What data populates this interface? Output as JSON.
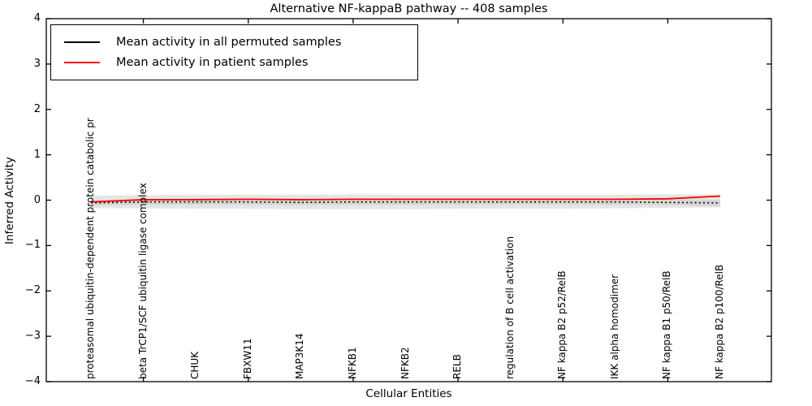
{
  "chart_data": {
    "type": "line",
    "title": "Alternative NF-kappaB pathway -- 408 samples",
    "xlabel": "Cellular Entities",
    "ylabel": "Inferred Activity",
    "ylim": [
      -4,
      4
    ],
    "yticks": [
      4,
      3,
      2,
      1,
      0,
      -1,
      -2,
      -3,
      -4
    ],
    "grid": false,
    "legend_position": "upper left",
    "categories": [
      "proteasomal ubiquitin-dependent protein catabolic pr",
      "beta TrCP1/SCF ubiquitin ligase complex",
      "CHUK",
      "FBXW11",
      "MAP3K14",
      "NFKB1",
      "NFKB2",
      "RELB",
      "regulation of B cell activation",
      "NF kappa B2 p52/RelB",
      "IKK alpha homodimer",
      "NF kappa B1 p50/RelB",
      "NF kappa B2 p100/RelB"
    ],
    "xtick_marks_at_category_index": [
      1,
      3,
      5,
      7,
      9,
      11
    ],
    "series": [
      {
        "name": "Mean activity in all permuted samples",
        "color": "#000000",
        "style": "dotted",
        "values": [
          -0.06,
          -0.04,
          -0.04,
          -0.04,
          -0.05,
          -0.04,
          -0.04,
          -0.04,
          -0.04,
          -0.04,
          -0.04,
          -0.05,
          -0.06
        ]
      },
      {
        "name": "Mean activity in patient samples",
        "color": "#ff0000",
        "style": "solid",
        "values": [
          -0.04,
          0.01,
          0.01,
          0.02,
          0.01,
          0.02,
          0.02,
          0.02,
          0.02,
          0.02,
          0.02,
          0.03,
          0.09
        ]
      }
    ],
    "bands": [
      {
        "name": "permuted-activity-outer-band",
        "color": "#e6e6e6",
        "upper": [
          0.1,
          0.11,
          0.12,
          0.12,
          0.12,
          0.13,
          0.12,
          0.12,
          0.12,
          0.12,
          0.12,
          0.13,
          0.13
        ],
        "lower": [
          -0.18,
          -0.18,
          -0.19,
          -0.19,
          -0.2,
          -0.2,
          -0.2,
          -0.19,
          -0.19,
          -0.19,
          -0.18,
          -0.17,
          -0.16
        ]
      },
      {
        "name": "permuted-activity-inner-band",
        "color": "#d6d6d6",
        "upper": [
          0.0,
          0.02,
          0.02,
          0.02,
          0.02,
          0.02,
          0.02,
          0.02,
          0.02,
          0.02,
          0.02,
          0.02,
          0.01
        ],
        "lower": [
          -0.12,
          -0.1,
          -0.1,
          -0.1,
          -0.11,
          -0.1,
          -0.1,
          -0.1,
          -0.1,
          -0.1,
          -0.1,
          -0.11,
          -0.13
        ]
      }
    ]
  }
}
